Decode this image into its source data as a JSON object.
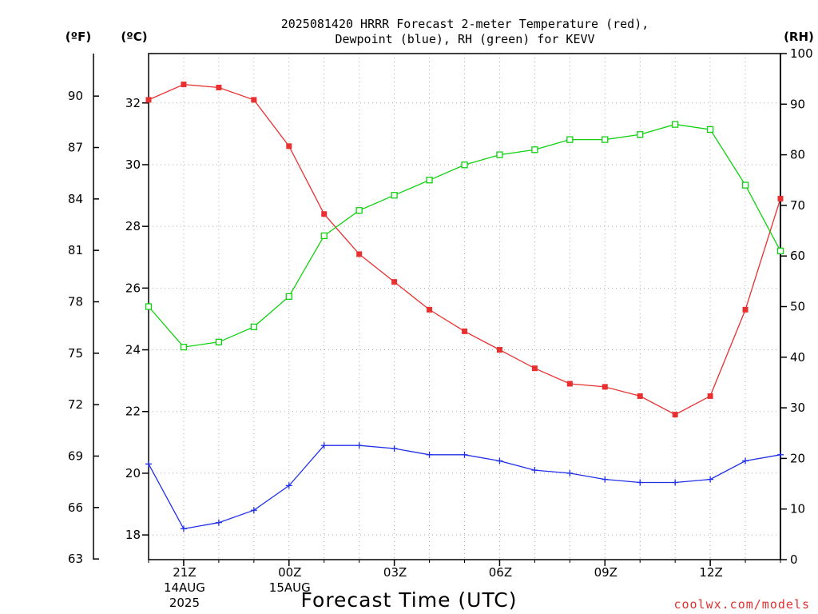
{
  "chart_data": {
    "type": "line",
    "title_lines": [
      "2025081420 HRRR Forecast 2-meter Temperature (red),",
      "Dewpoint (blue), RH (green) for KEVV"
    ],
    "xlabel": "Forecast Time (UTC)",
    "credit": "coolwx.com/models",
    "unit_labels": {
      "f": "(ºF)",
      "c": "(ºC)",
      "rh": "(RH)"
    },
    "x_hours": [
      20,
      21,
      22,
      23,
      24,
      25,
      26,
      27,
      28,
      29,
      30,
      31,
      32,
      33,
      34,
      35,
      36,
      37,
      38
    ],
    "xlim": [
      20,
      38
    ],
    "x_ticks": [
      {
        "x": 21,
        "lines": [
          "21Z",
          "14AUG",
          "2025"
        ]
      },
      {
        "x": 24,
        "lines": [
          "00Z",
          "15AUG"
        ]
      },
      {
        "x": 27,
        "lines": [
          "03Z"
        ]
      },
      {
        "x": 30,
        "lines": [
          "06Z"
        ]
      },
      {
        "x": 33,
        "lines": [
          "09Z"
        ]
      },
      {
        "x": 36,
        "lines": [
          "12Z"
        ]
      }
    ],
    "celsius_axis": {
      "ylim": [
        17.2,
        33.6
      ],
      "ticks": [
        18,
        20,
        22,
        24,
        26,
        28,
        30,
        32
      ]
    },
    "fahrenheit_axis": {
      "ticks": [
        63,
        66,
        69,
        72,
        75,
        78,
        81,
        84,
        87,
        90
      ]
    },
    "rh_axis": {
      "ylim": [
        0,
        100
      ],
      "ticks": [
        0,
        10,
        20,
        30,
        40,
        50,
        60,
        70,
        80,
        90,
        100
      ]
    },
    "series": [
      {
        "name": "Temperature (red)",
        "color": "#e83030",
        "marker": "filled-square",
        "axis": "celsius",
        "values": [
          32.1,
          32.6,
          32.5,
          32.1,
          30.6,
          28.4,
          27.1,
          26.2,
          25.3,
          24.6,
          24.0,
          23.4,
          22.9,
          22.8,
          22.5,
          21.9,
          22.5,
          25.3,
          28.9
        ]
      },
      {
        "name": "Dewpoint (blue)",
        "color": "#2030e8",
        "marker": "plus",
        "axis": "celsius",
        "values": [
          20.3,
          18.2,
          18.4,
          18.8,
          19.6,
          20.9,
          20.9,
          20.8,
          20.6,
          20.6,
          20.4,
          20.1,
          20.0,
          19.8,
          19.7,
          19.7,
          19.8,
          20.4,
          20.6
        ]
      },
      {
        "name": "RH (green)",
        "color": "#10d010",
        "marker": "open-square",
        "axis": "rh",
        "values": [
          50,
          42,
          43,
          46,
          52,
          64,
          69,
          72,
          75,
          78,
          80,
          81,
          83,
          83,
          84,
          86,
          85,
          74,
          61
        ]
      }
    ]
  }
}
